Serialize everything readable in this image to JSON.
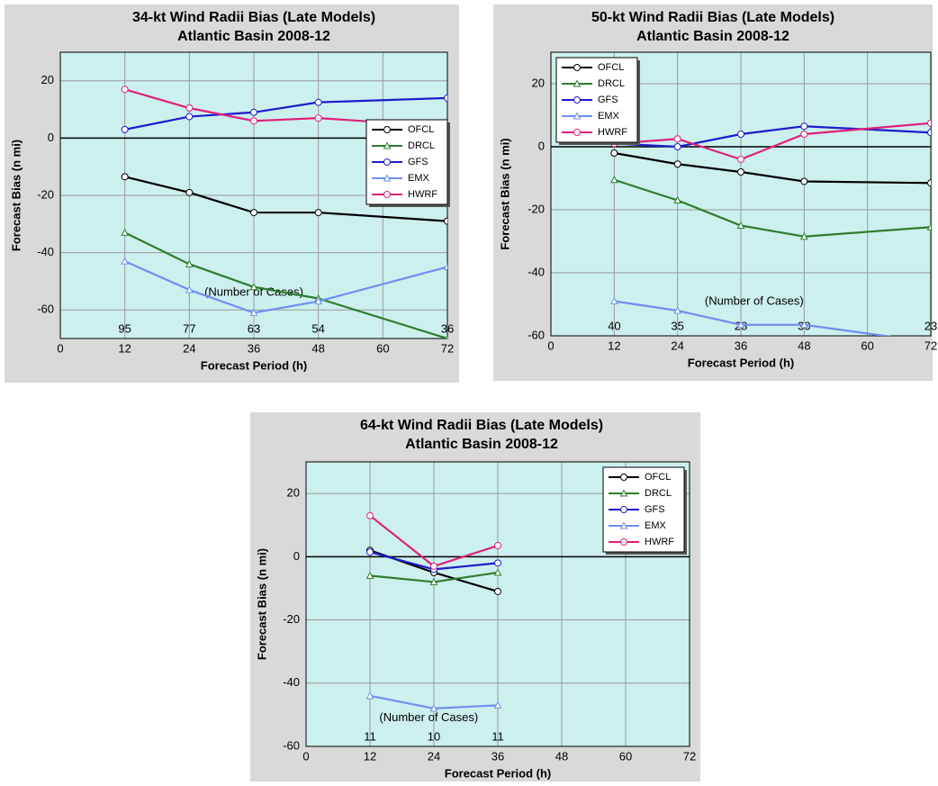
{
  "chart_data": [
    {
      "type": "line",
      "title": "34-kt Wind Radii Bias (Late Models)",
      "subtitle": "Atlantic Basin 2008-12",
      "x_label": "Forecast Period (h)",
      "y_label": "Forecast Bias (n mi)",
      "x": [
        12,
        24,
        36,
        48,
        72
      ],
      "xlim": [
        0,
        72
      ],
      "xticks": [
        0,
        12,
        24,
        36,
        48,
        60,
        72
      ],
      "ylim": [
        -70,
        30
      ],
      "yticks": [
        -60,
        -40,
        -20,
        0,
        20
      ],
      "grid": true,
      "legend": "center right",
      "cases_label": "(Number of Cases)",
      "cases": [
        95,
        77,
        63,
        54,
        36
      ],
      "series": [
        {
          "name": "OFCL",
          "color": "#000000",
          "marker": "circle",
          "values": [
            -13.5,
            -19,
            -26,
            -26,
            -29
          ]
        },
        {
          "name": "DRCL",
          "color": "#2e7d2e",
          "marker": "triangle",
          "values": [
            -33,
            -44,
            -52,
            -56,
            -70
          ]
        },
        {
          "name": "GFS",
          "color": "#1c1ccc",
          "marker": "circle",
          "values": [
            3,
            7.5,
            9,
            12.5,
            14
          ]
        },
        {
          "name": "EMX",
          "color": "#6f8ff0",
          "marker": "triangle",
          "values": [
            -43,
            -53,
            -61,
            -57,
            -45
          ]
        },
        {
          "name": "HWRF",
          "color": "#e0207a",
          "marker": "circle",
          "values": [
            17,
            10.5,
            6,
            7,
            4
          ]
        }
      ]
    },
    {
      "type": "line",
      "title": "50-kt Wind Radii Bias (Late Models)",
      "subtitle": "Atlantic Basin 2008-12",
      "x_label": "Forecast Period (h)",
      "y_label": "Forecast Bias (n mi)",
      "x": [
        12,
        24,
        36,
        48,
        72
      ],
      "xlim": [
        0,
        72
      ],
      "xticks": [
        0,
        12,
        24,
        36,
        48,
        60,
        72
      ],
      "ylim": [
        -60,
        30
      ],
      "yticks": [
        -60,
        -40,
        -20,
        0,
        20
      ],
      "grid": true,
      "legend": "upper left",
      "cases_label": "(Number of Cases)",
      "cases": [
        40,
        35,
        28,
        30,
        23
      ],
      "series": [
        {
          "name": "OFCL",
          "color": "#000000",
          "marker": "circle",
          "values": [
            -2,
            -5.5,
            -8,
            -11,
            -11.5
          ]
        },
        {
          "name": "DRCL",
          "color": "#2e7d2e",
          "marker": "triangle",
          "values": [
            -10.5,
            -17,
            -25,
            -28.5,
            -25.5
          ]
        },
        {
          "name": "GFS",
          "color": "#1c1ccc",
          "marker": "circle",
          "values": [
            1,
            0,
            4,
            6.5,
            4.5
          ]
        },
        {
          "name": "EMX",
          "color": "#6f8ff0",
          "marker": "triangle",
          "values": [
            -49,
            -52,
            -56.5,
            -56.5,
            -62
          ]
        },
        {
          "name": "HWRF",
          "color": "#e0207a",
          "marker": "circle",
          "values": [
            1,
            2.5,
            -4,
            4,
            7.5
          ]
        }
      ]
    },
    {
      "type": "line",
      "title": "64-kt Wind Radii Bias (Late Models)",
      "subtitle": "Atlantic Basin 2008-12",
      "x_label": "Forecast Period (h)",
      "y_label": "Forecast Bias (n mi)",
      "x": [
        12,
        24,
        36
      ],
      "xlim": [
        0,
        72
      ],
      "xticks": [
        0,
        12,
        24,
        36,
        48,
        60,
        72
      ],
      "ylim": [
        -60,
        30
      ],
      "yticks": [
        -60,
        -40,
        -20,
        0,
        20
      ],
      "grid": true,
      "legend": "upper right",
      "cases_label": "(Number of Cases)",
      "cases": [
        11,
        10,
        11
      ],
      "series": [
        {
          "name": "OFCL",
          "color": "#000000",
          "marker": "circle",
          "values": [
            2,
            -5,
            -11
          ]
        },
        {
          "name": "DRCL",
          "color": "#2e7d2e",
          "marker": "triangle",
          "values": [
            -6,
            -8,
            -5
          ]
        },
        {
          "name": "GFS",
          "color": "#1c1ccc",
          "marker": "circle",
          "values": [
            1.5,
            -4,
            -2
          ]
        },
        {
          "name": "EMX",
          "color": "#6f8ff0",
          "marker": "triangle",
          "values": [
            -44,
            -48,
            -47
          ]
        },
        {
          "name": "HWRF",
          "color": "#e0207a",
          "marker": "circle",
          "values": [
            13,
            -3,
            3.5
          ]
        }
      ]
    }
  ]
}
